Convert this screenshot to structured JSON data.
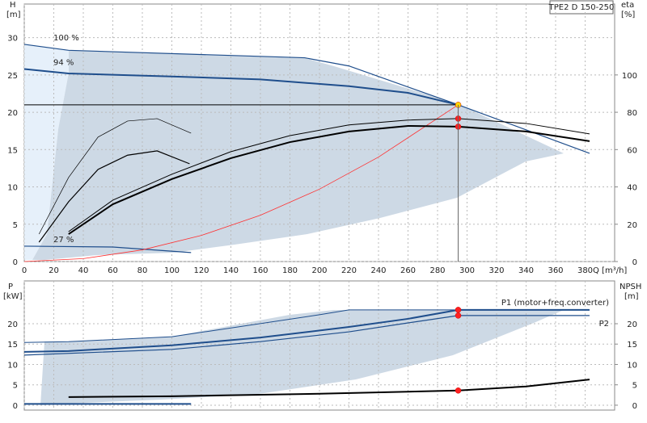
{
  "chart_data": [
    {
      "type": "line",
      "model": "TPE2 D 150-250",
      "y_label": "H",
      "y_unit": "[m]",
      "y2_label": "eta",
      "y2_unit": "[%]",
      "x_label": "Q [m³/h]",
      "xlim": [
        0,
        400
      ],
      "xticks": [
        0,
        20,
        40,
        60,
        80,
        100,
        120,
        140,
        160,
        180,
        200,
        220,
        240,
        260,
        280,
        300,
        320,
        340,
        360,
        380
      ],
      "ylim": [
        0,
        34.5
      ],
      "yticks": [
        0,
        5,
        10,
        15,
        20,
        25,
        30
      ],
      "y2lim": [
        0,
        138
      ],
      "y2ticks": [
        0,
        20,
        40,
        60,
        80,
        100
      ],
      "grid": true,
      "series": [
        {
          "label": "100 %",
          "color": "#1f4e8c",
          "width": 1.2,
          "x": [
            0,
            30,
            190,
            220,
            294,
            383
          ],
          "values": [
            29.1,
            28.3,
            27.3,
            26.2,
            21,
            14.5
          ]
        },
        {
          "label": "94 %",
          "color": "#1f4e8c",
          "width": 2,
          "x": [
            0,
            30,
            100,
            160,
            220,
            260,
            294
          ],
          "values": [
            25.8,
            25.2,
            24.8,
            24.4,
            23.5,
            22.6,
            21
          ]
        },
        {
          "label": "27 %",
          "color": "#1f4e8c",
          "width": 1.2,
          "x": [
            0,
            60,
            113
          ],
          "values": [
            2.06,
            1.95,
            1.2
          ]
        },
        {
          "color": "#ff3030",
          "width": 0.8,
          "x": [
            0,
            40,
            80,
            120,
            160,
            200,
            240,
            294
          ],
          "values": [
            0,
            0.39,
            1.56,
            3.5,
            6.2,
            9.7,
            14,
            21
          ]
        },
        {
          "color": "#000000",
          "width": 1,
          "x": [
            0,
            294
          ],
          "values": [
            21,
            21
          ]
        },
        {
          "color": "#000000",
          "width": 1,
          "axis": "y2",
          "x": [
            30,
            60,
            100,
            140,
            180,
            220,
            260,
            294,
            340,
            383
          ],
          "values": [
            16,
            32.9,
            46.8,
            58.9,
            67.5,
            73.2,
            75.8,
            76.6,
            74,
            68.4
          ]
        },
        {
          "color": "#000000",
          "width": 2,
          "axis": "y2",
          "x": [
            30,
            60,
            100,
            140,
            180,
            220,
            260,
            294,
            340,
            383
          ],
          "values": [
            14.7,
            30.7,
            44.2,
            55.4,
            64,
            69.7,
            72.7,
            72.3,
            69.7,
            64.5
          ]
        },
        {
          "color": "#000000",
          "width": 0.7,
          "axis": "y2",
          "x": [
            10,
            30,
            50,
            70,
            90,
            113
          ],
          "values": [
            14.7,
            45,
            66.7,
            75.3,
            76.6,
            68.8
          ]
        },
        {
          "color": "#000000",
          "width": 1.2,
          "axis": "y2",
          "x": [
            10,
            30,
            50,
            70,
            90,
            112
          ],
          "values": [
            10.4,
            32,
            49.4,
            57,
            59.3,
            52.4
          ]
        }
      ],
      "markers": [
        {
          "x": 294,
          "y": 21,
          "color": "#ffd800"
        },
        {
          "x": 294,
          "y": 76.6,
          "axis": "y2",
          "color": "#ff2020"
        },
        {
          "x": 294,
          "y": 72.3,
          "axis": "y2",
          "color": "#ff2020"
        }
      ]
    },
    {
      "type": "line",
      "y_label": "P",
      "y_unit": "[kW]",
      "y2_label": "NPSH",
      "y2_unit": "[m]",
      "xlim": [
        0,
        400
      ],
      "xticks": [
        0,
        20,
        40,
        60,
        80,
        100,
        120,
        140,
        160,
        180,
        200,
        220,
        240,
        260,
        280,
        300,
        320,
        340,
        360,
        380
      ],
      "ylim": [
        -1.2,
        30.5
      ],
      "yticks": [
        0,
        5,
        10,
        15,
        20
      ],
      "y2lim": [
        -1.2,
        30.5
      ],
      "y2ticks": [
        0,
        5,
        10,
        15,
        20
      ],
      "grid": true,
      "series": [
        {
          "color": "#1f4e8c",
          "width": 1,
          "x": [
            0,
            30,
            100,
            200,
            220,
            383
          ],
          "values": [
            15.4,
            15.6,
            16.8,
            22.2,
            23.4,
            23.4
          ]
        },
        {
          "label": "P1 (motor+freq.converter)",
          "color": "#1f4e8c",
          "width": 2,
          "x": [
            0,
            30,
            100,
            160,
            220,
            260,
            294,
            383
          ],
          "values": [
            13.1,
            13.3,
            14.7,
            16.6,
            19.2,
            21.2,
            23.4,
            23.4
          ]
        },
        {
          "label": "P2",
          "color": "#1f4e8c",
          "width": 1.2,
          "x": [
            0,
            100,
            160,
            220,
            260,
            294,
            383
          ],
          "values": [
            12.3,
            13.7,
            15.6,
            18,
            20.2,
            22,
            22
          ]
        },
        {
          "color": "#1f4e8c",
          "width": 2,
          "x": [
            0,
            113
          ],
          "values": [
            0.3,
            0.3
          ]
        },
        {
          "color": "#000000",
          "width": 2,
          "axis": "y2",
          "x": [
            30,
            100,
            200,
            294,
            340,
            383
          ],
          "values": [
            2,
            2.2,
            2.8,
            3.6,
            4.6,
            6.3
          ]
        }
      ],
      "markers": [
        {
          "x": 294,
          "y": 23.4,
          "color": "#ff2020"
        },
        {
          "x": 294,
          "y": 22,
          "color": "#ff2020"
        },
        {
          "x": 294,
          "y": 3.6,
          "axis": "y2",
          "color": "#ff2020"
        }
      ]
    }
  ]
}
